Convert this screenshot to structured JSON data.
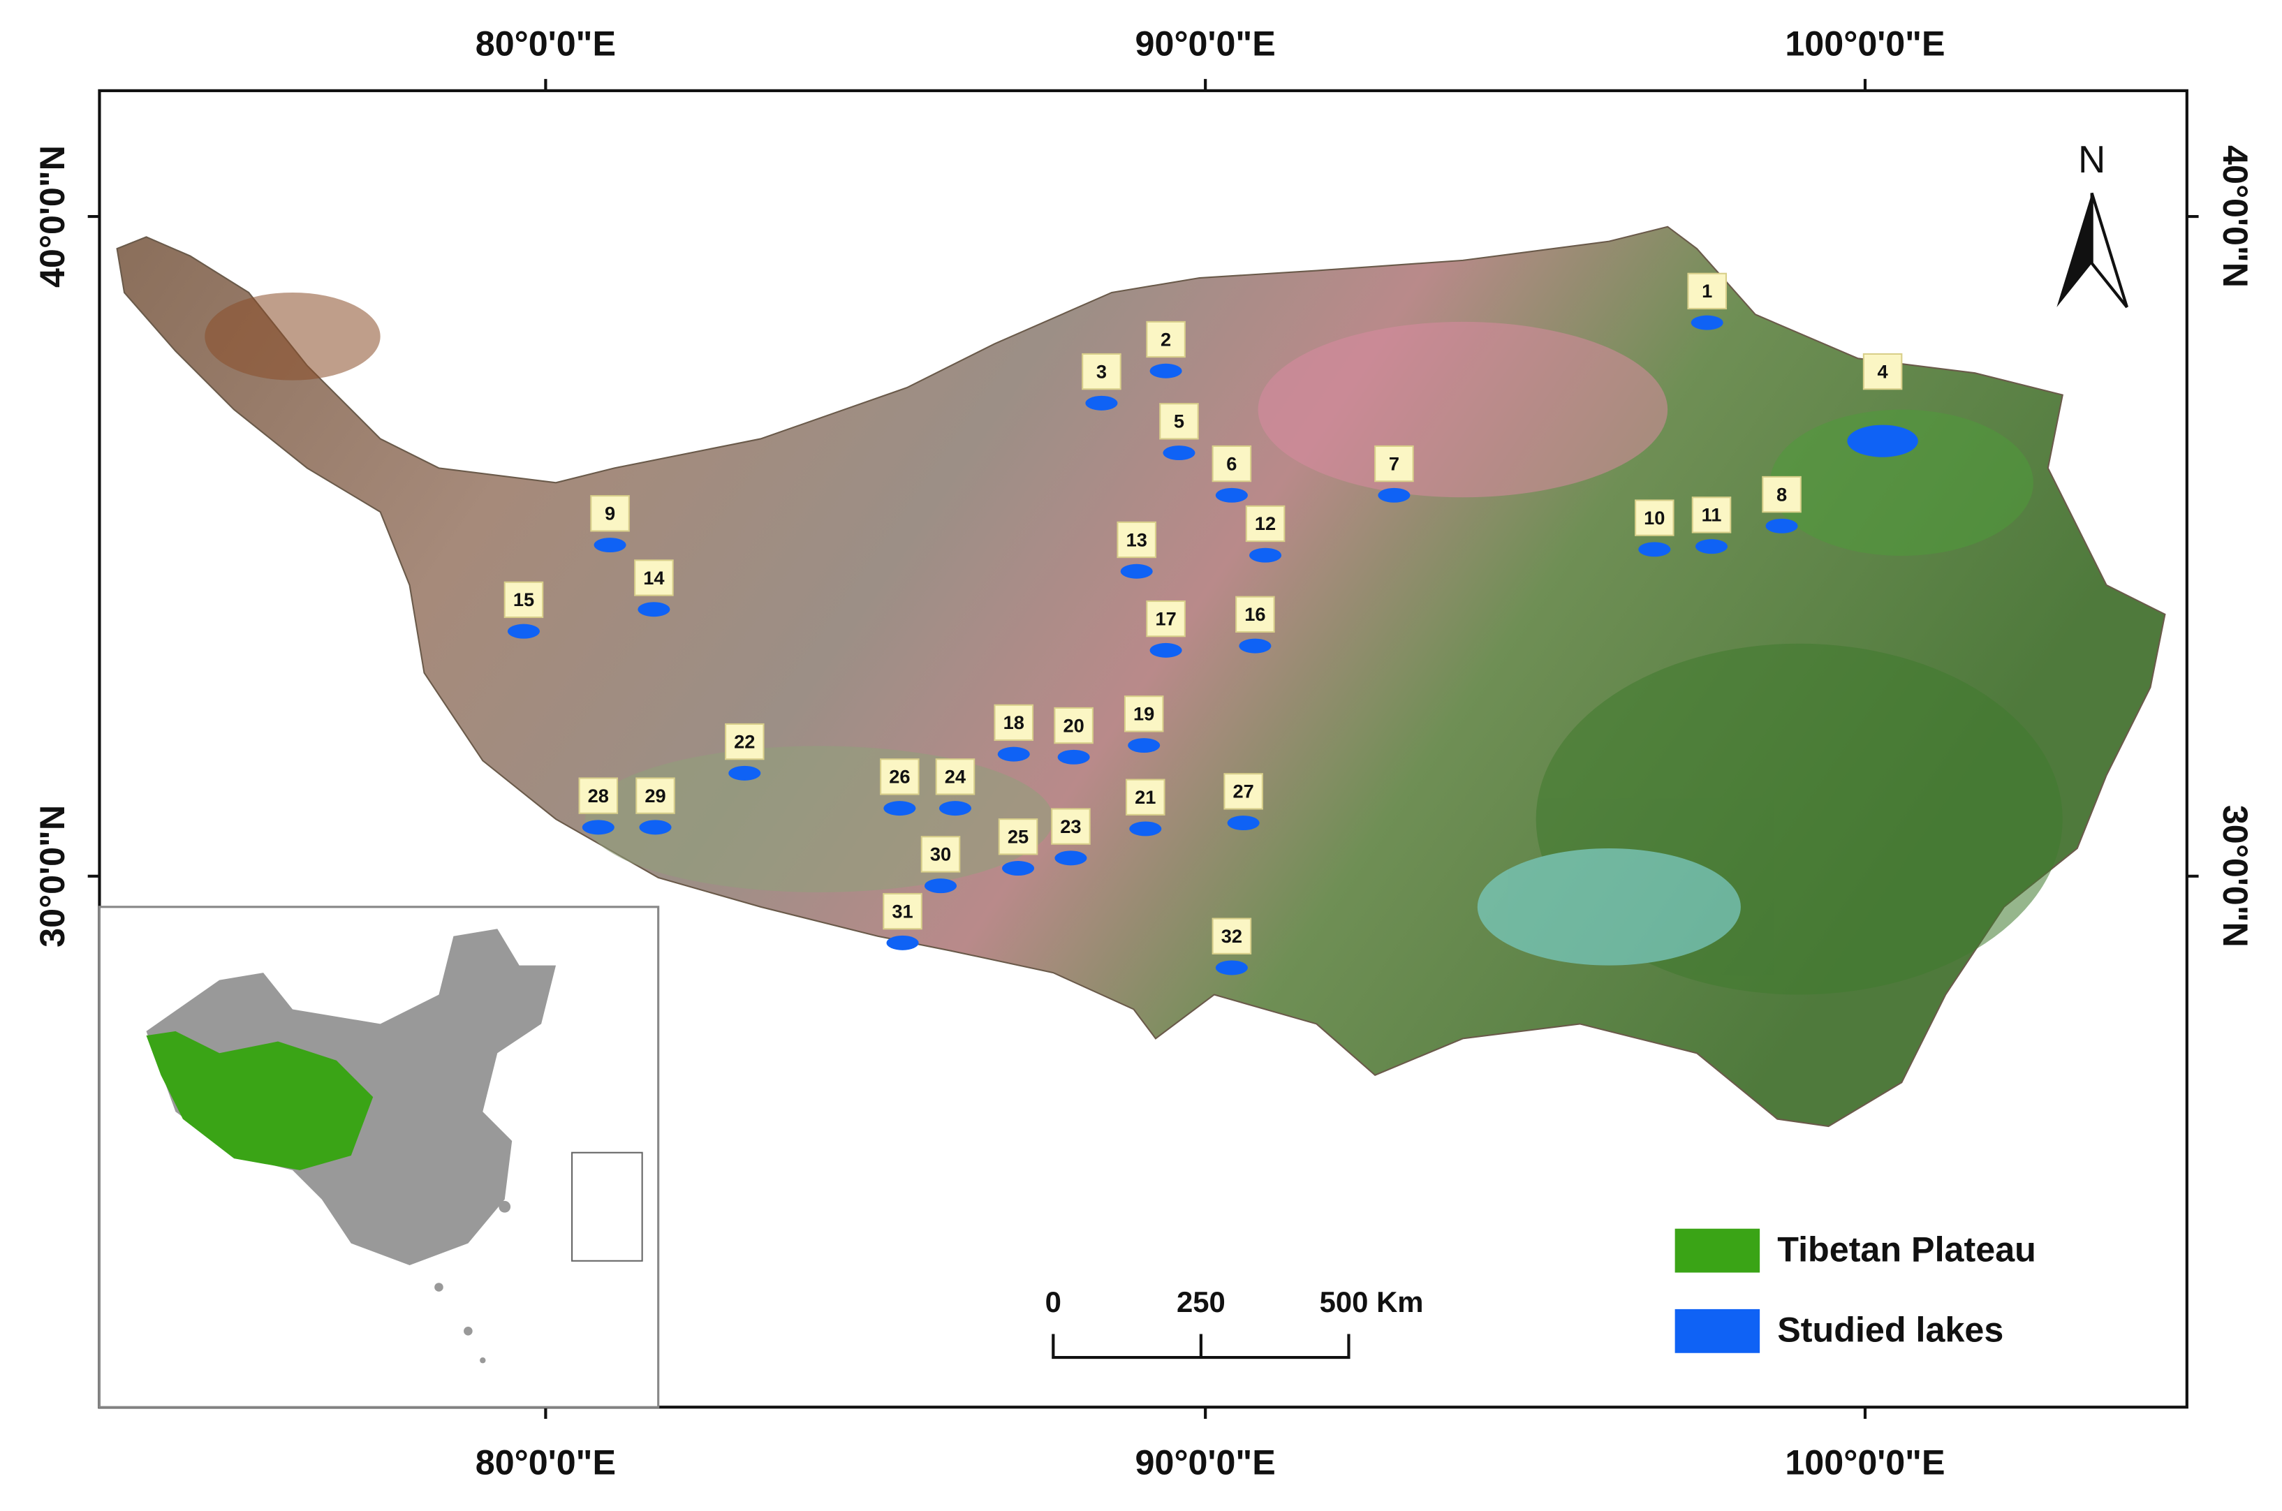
{
  "map": {
    "lon_labels_top": [
      "80°0'0\"E",
      "90°0'0\"E",
      "100°0'0\"E"
    ],
    "lon_labels_bottom": [
      "80°0'0\"E",
      "90°0'0\"E",
      "100°0'0\"E"
    ],
    "lat_labels_left": [
      "40°0'0\"N",
      "30°0'0\"N"
    ],
    "lat_labels_right": [
      "40°0'0\"N",
      "30°0'0\"N"
    ],
    "north_label": "N",
    "lakes": [
      "1",
      "2",
      "3",
      "4",
      "5",
      "6",
      "7",
      "8",
      "9",
      "10",
      "11",
      "12",
      "13",
      "14",
      "15",
      "16",
      "17",
      "18",
      "19",
      "20",
      "21",
      "22",
      "23",
      "24",
      "25",
      "26",
      "27",
      "28",
      "29",
      "30",
      "31",
      "32"
    ],
    "legend": [
      {
        "label": "Tibetan Plateau",
        "color": "#3aa416"
      },
      {
        "label": "Studied lakes",
        "color": "#0f62f5"
      }
    ],
    "scale_bar": {
      "labels": [
        "0",
        "250",
        "500 Km"
      ]
    }
  }
}
